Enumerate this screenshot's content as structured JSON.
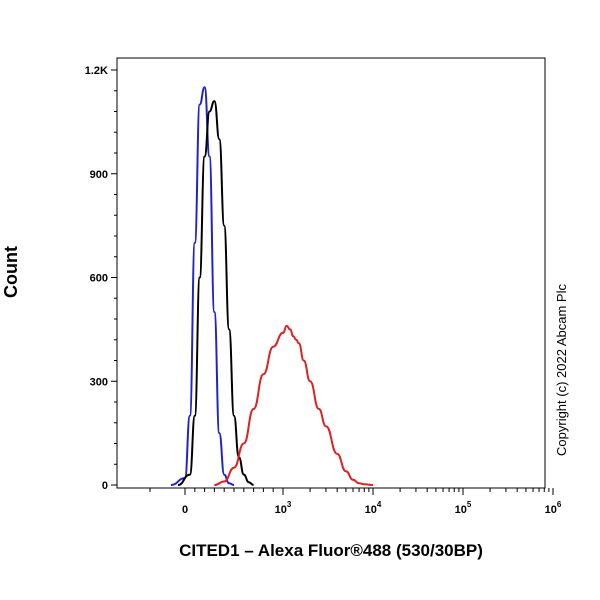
{
  "chart_data": {
    "type": "line",
    "title": "",
    "xlabel": "CITED1 – Alexa Fluor®488 (530/30BP)",
    "ylabel": "Count",
    "copyright": "Copyright (c) 2022 Abcam Plc",
    "x_scale": "biexponential",
    "ylim": [
      0,
      1200
    ],
    "y_ticks": [
      {
        "value": 0,
        "label": "0"
      },
      {
        "value": 300,
        "label": "300"
      },
      {
        "value": 600,
        "label": "600"
      },
      {
        "value": 900,
        "label": "900"
      },
      {
        "value": 1200,
        "label": "1.2K"
      }
    ],
    "x_ticks": [
      {
        "value": 0,
        "label": "0"
      },
      {
        "value": 1000,
        "label": "10^3",
        "base": "10",
        "exp": "3"
      },
      {
        "value": 10000,
        "label": "10^4",
        "base": "10",
        "exp": "4"
      },
      {
        "value": 100000,
        "label": "10^5",
        "base": "10",
        "exp": "5"
      },
      {
        "value": 1000000,
        "label": "10^6",
        "base": "10",
        "exp": "6"
      }
    ],
    "grid": false,
    "legend": "none",
    "series": [
      {
        "color": "#2222cc",
        "x": [
          -40,
          0,
          50,
          100,
          150,
          200,
          250,
          300,
          350,
          400,
          450,
          500
        ],
        "y": [
          0,
          20,
          200,
          700,
          1100,
          1150,
          950,
          500,
          150,
          30,
          5,
          0
        ]
      },
      {
        "color": "#000000",
        "x": [
          -20,
          50,
          100,
          150,
          200,
          250,
          300,
          350,
          400,
          450,
          500,
          550,
          600,
          650,
          700
        ],
        "y": [
          0,
          30,
          200,
          600,
          950,
          1080,
          1110,
          1000,
          750,
          450,
          200,
          80,
          30,
          8,
          0
        ]
      },
      {
        "color": "#dd2222",
        "x": [
          300,
          400,
          500,
          600,
          700,
          800,
          900,
          1000,
          1100,
          1200,
          1300,
          1400,
          1500,
          1700,
          2000,
          2500,
          3000,
          4000,
          5000,
          6000,
          7000,
          8000,
          10000
        ],
        "y": [
          0,
          10,
          50,
          120,
          220,
          320,
          400,
          440,
          460,
          450,
          430,
          420,
          410,
          360,
          300,
          220,
          170,
          90,
          40,
          15,
          5,
          2,
          0
        ]
      }
    ]
  }
}
